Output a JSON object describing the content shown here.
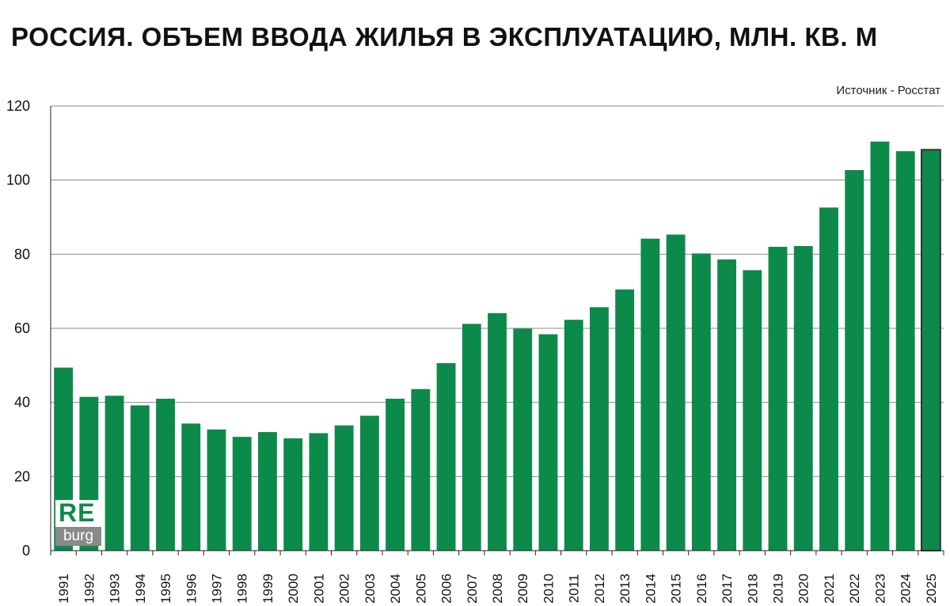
{
  "title": "РОССИЯ. ОБЪЕМ ВВОДА  ЖИЛЬЯ В ЭКСПЛУАТАЦИЮ, МЛН. КВ. М",
  "source": "Источник - Росстат",
  "logo": {
    "re": "RE",
    "burg": "burg"
  },
  "colors": {
    "bar": "#0c8a4a",
    "grid": "#8c8c8c",
    "highlight_border": "#333333"
  },
  "chart_data": {
    "type": "bar",
    "title": "РОССИЯ. ОБЪЕМ ВВОДА  ЖИЛЬЯ В ЭКСПЛУАТАЦИЮ, МЛН. КВ. М",
    "xlabel": "",
    "ylabel": "",
    "ylim": [
      0,
      120
    ],
    "yticks": [
      0,
      20,
      40,
      60,
      80,
      100,
      120
    ],
    "grid": true,
    "categories": [
      "1991",
      "1992",
      "1993",
      "1994",
      "1995",
      "1996",
      "1997",
      "1998",
      "1999",
      "2000",
      "2001",
      "2002",
      "2003",
      "2004",
      "2005",
      "2006",
      "2007",
      "2008",
      "2009",
      "2010",
      "2011",
      "2012",
      "2013",
      "2014",
      "2015",
      "2016",
      "2017",
      "2018",
      "2019",
      "2020",
      "2021",
      "2022",
      "2023",
      "2024",
      "2025"
    ],
    "values": [
      49.4,
      41.5,
      41.8,
      39.2,
      41.0,
      34.3,
      32.7,
      30.7,
      32.0,
      30.3,
      31.7,
      33.8,
      36.4,
      41.0,
      43.6,
      50.6,
      61.2,
      64.1,
      59.9,
      58.4,
      62.3,
      65.7,
      70.5,
      84.2,
      85.3,
      80.2,
      78.6,
      75.7,
      82.0,
      82.2,
      92.6,
      102.7,
      110.4,
      107.8,
      108.2
    ]
  }
}
